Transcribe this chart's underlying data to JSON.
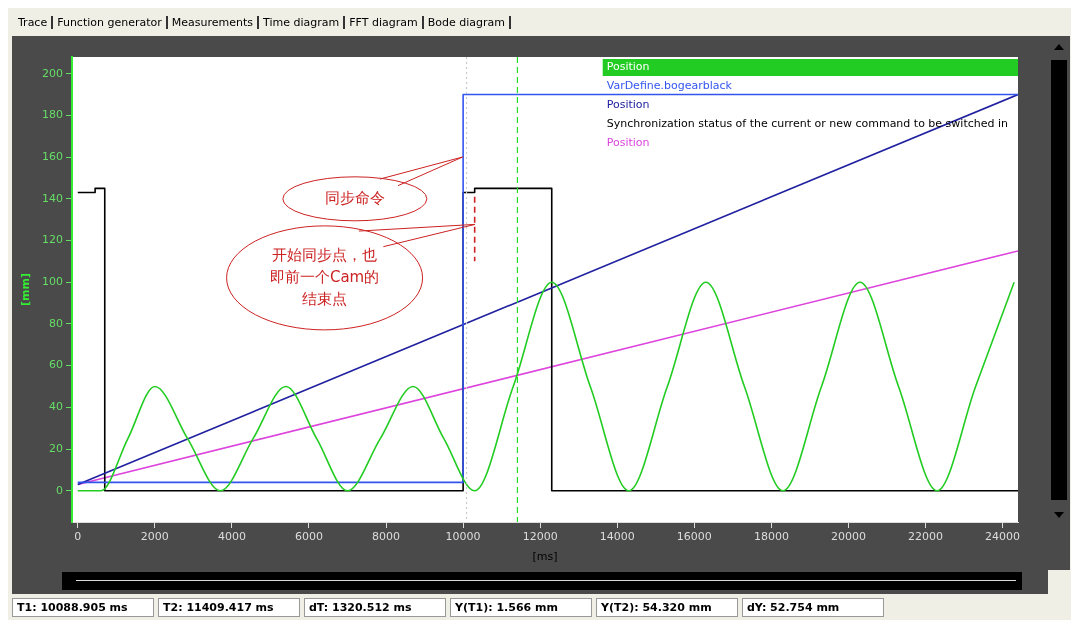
{
  "chart_data": {
    "type": "line",
    "xlabel": "[ms]",
    "ylabel": "[mm]",
    "xlim": [
      -150,
      24400
    ],
    "ylim": [
      -15,
      208
    ],
    "xticks": [
      0,
      2000,
      4000,
      6000,
      8000,
      10000,
      12000,
      14000,
      16000,
      18000,
      20000,
      22000,
      24000
    ],
    "yticks": [
      0,
      20,
      40,
      60,
      80,
      100,
      120,
      140,
      160,
      180,
      200
    ],
    "grid": false,
    "legend": "top right",
    "marker": "none",
    "line_style": "solid",
    "series": [
      {
        "name": "Position",
        "color": "#22cc22",
        "type": "line",
        "x": [
          0,
          600,
          1300,
          2000,
          2850,
          3700,
          4550,
          5400,
          6200,
          7000,
          7850,
          8700,
          9500,
          10300,
          11300,
          12300,
          13300,
          14300,
          15300,
          16300,
          17300,
          18300,
          19300,
          20300,
          21300,
          22300,
          23300,
          24300
        ],
        "values": [
          0,
          0,
          25,
          50,
          25,
          0,
          25,
          50,
          25,
          0,
          25,
          50,
          25,
          0,
          50,
          100,
          50,
          0,
          50,
          100,
          50,
          0,
          50,
          100,
          50,
          0,
          50,
          100
        ]
      },
      {
        "name": "VarDefine.bogearblack",
        "color": "#3355ee",
        "type": "step",
        "x": [
          0,
          10000,
          24400
        ],
        "values": [
          4,
          190,
          190
        ]
      },
      {
        "name": "Position",
        "color": "#2020a0",
        "type": "line",
        "x": [
          0,
          24400
        ],
        "values": [
          3,
          190
        ]
      },
      {
        "name": "Synchronization status of the current or new command to be switched in",
        "color": "#000000",
        "type": "line",
        "x": [
          0,
          450,
          450,
          700,
          700,
          10000,
          10000,
          10300,
          10300,
          12300,
          12300,
          24400
        ],
        "values": [
          143,
          143,
          145,
          145,
          0,
          0,
          143,
          143,
          145,
          145,
          0,
          0
        ]
      },
      {
        "name": "Position",
        "color": "#dd44dd",
        "type": "line",
        "x": [
          0,
          24400
        ],
        "values": [
          3,
          115
        ]
      },
      {
        "color": "#cc2222",
        "type": "line",
        "line_style": "dashed",
        "x": [
          10300,
          10300
        ],
        "values": [
          141,
          110
        ]
      }
    ],
    "ref_lines": [
      {
        "axis": "x",
        "value": 10088.905,
        "color": "#c8c8c8",
        "line_style": "dotted"
      },
      {
        "axis": "x",
        "value": 11409.417,
        "color": "#22dd22",
        "line_style": "dashed"
      }
    ],
    "annotations": [
      "Trace",
      "Function generator",
      "Measurements",
      "Time diagram",
      "FFT diagram",
      "Bode diagram",
      "T1: 10088.905 ms",
      "T2: 11409.417 ms",
      "dT: 1320.512 ms",
      "Y(T1): 1.566 mm",
      "Y(T2): 54.320 mm",
      "dY: 52.754 mm",
      "同步命令",
      "开始同步点，也即前一个Cam的结束点"
    ]
  }
}
